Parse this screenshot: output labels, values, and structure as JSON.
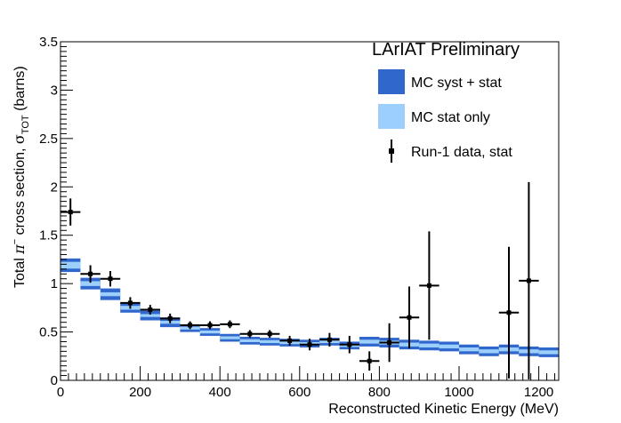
{
  "chart_data": {
    "type": "scatter",
    "title": "LArIAT Preliminary",
    "xlabel": "Reconstructed Kinetic Energy (MeV)",
    "ylabel": "Total π⁻ cross section, σ_TOT (barns)",
    "ylabel_parts": {
      "pre": "Total ",
      "pi": "π",
      "sup": "−",
      "mid": " cross section, ",
      "sigma": "σ",
      "sub": "TOT",
      "post": " (barns)"
    },
    "xlim": [
      0,
      1250
    ],
    "ylim": [
      0,
      3.5
    ],
    "x_ticks": [
      0,
      200,
      400,
      600,
      800,
      1000,
      1200
    ],
    "y_ticks": [
      0,
      0.5,
      1,
      1.5,
      2,
      2.5,
      3,
      3.5
    ],
    "x_tick_labels": [
      "0",
      "200",
      "400",
      "600",
      "800",
      "1000",
      "1200"
    ],
    "y_tick_labels": [
      "0",
      "0.5",
      "1",
      "1.5",
      "2",
      "2.5",
      "3",
      "3.5"
    ],
    "grid": false,
    "legend_position": "top-right",
    "legend": [
      {
        "label": "MC syst + stat",
        "kind": "box",
        "color": "#2f67cd"
      },
      {
        "label": "MC stat only",
        "kind": "box",
        "color": "#9ccffb"
      },
      {
        "label": "Run-1 data, stat",
        "kind": "errorbar",
        "color": "#000000"
      }
    ],
    "colors": {
      "syst": "#2f67cd",
      "stat": "#9ccffb",
      "data": "#000000"
    },
    "bin_width": 50,
    "mc": {
      "bin_low": [
        0,
        50,
        100,
        150,
        200,
        250,
        300,
        350,
        400,
        450,
        500,
        550,
        600,
        650,
        700,
        750,
        800,
        850,
        900,
        950,
        1000,
        1050,
        1100,
        1150,
        1200
      ],
      "value": [
        1.19,
        1.0,
        0.89,
        0.75,
        0.67,
        0.6,
        0.54,
        0.5,
        0.44,
        0.41,
        0.4,
        0.39,
        0.38,
        0.4,
        0.36,
        0.4,
        0.39,
        0.37,
        0.36,
        0.35,
        0.32,
        0.3,
        0.32,
        0.3,
        0.29
      ],
      "syst_err": [
        0.07,
        0.06,
        0.06,
        0.05,
        0.05,
        0.05,
        0.04,
        0.04,
        0.04,
        0.04,
        0.04,
        0.04,
        0.04,
        0.04,
        0.04,
        0.05,
        0.05,
        0.05,
        0.05,
        0.05,
        0.05,
        0.05,
        0.05,
        0.05,
        0.05
      ],
      "stat_err": [
        0.035,
        0.025,
        0.02,
        0.02,
        0.015,
        0.015,
        0.015,
        0.015,
        0.015,
        0.015,
        0.015,
        0.015,
        0.015,
        0.015,
        0.015,
        0.02,
        0.02,
        0.02,
        0.02,
        0.02,
        0.02,
        0.02,
        0.02,
        0.02,
        0.02
      ]
    },
    "data": {
      "x": [
        25,
        75,
        125,
        175,
        225,
        275,
        325,
        375,
        425,
        475,
        525,
        575,
        625,
        675,
        725,
        775,
        825,
        875,
        925,
        1125,
        1175
      ],
      "y": [
        1.74,
        1.1,
        1.05,
        0.8,
        0.73,
        0.64,
        0.57,
        0.57,
        0.58,
        0.48,
        0.48,
        0.41,
        0.37,
        0.42,
        0.37,
        0.2,
        0.39,
        0.65,
        0.98,
        0.7,
        1.03
      ],
      "yerr": [
        0.14,
        0.09,
        0.08,
        0.06,
        0.05,
        0.05,
        0.04,
        0.04,
        0.04,
        0.04,
        0.04,
        0.05,
        0.06,
        0.07,
        0.09,
        0.1,
        0.2,
        0.32,
        0.56,
        0.68,
        1.02
      ],
      "xerr": 25
    }
  }
}
